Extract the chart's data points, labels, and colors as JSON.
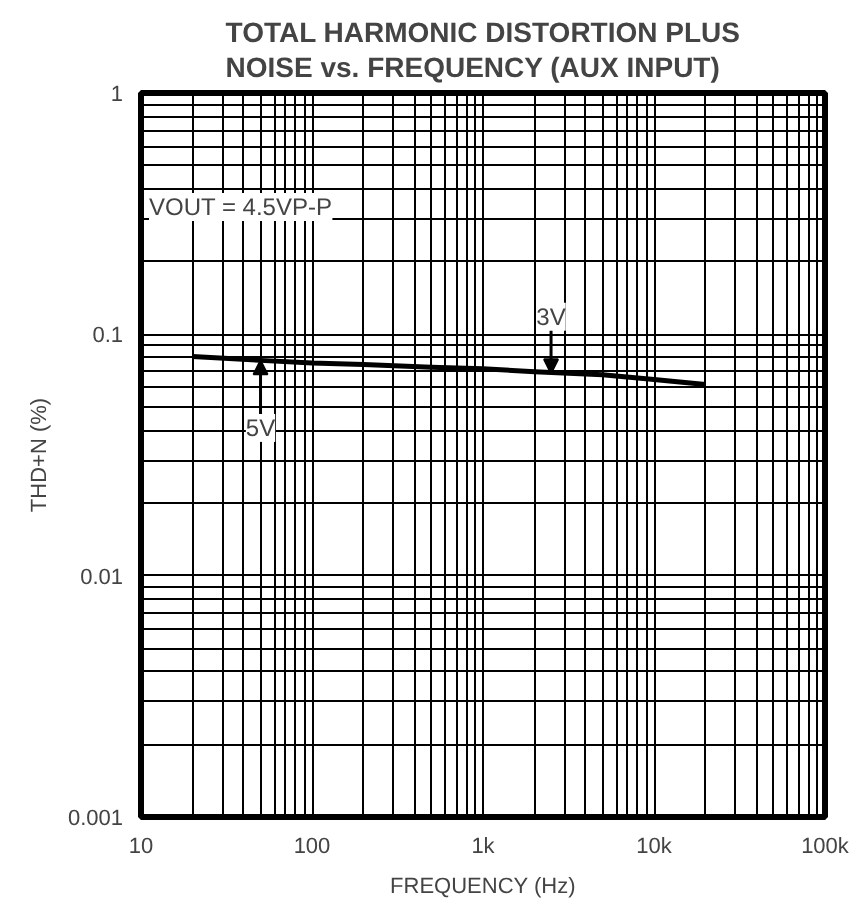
{
  "chart_data": {
    "type": "line",
    "title": "TOTAL HARMONIC DISTORTION PLUS\nNOISE vs. FREQUENCY (AUX INPUT)",
    "xlabel": "FREQUENCY (Hz)",
    "ylabel": "THD+N (%)",
    "x": [
      20,
      50,
      100,
      200,
      500,
      1000,
      2000,
      5000,
      10000,
      20000
    ],
    "series": [
      {
        "color": "#000000",
        "values": [
          0.081,
          0.078,
          0.076,
          0.075,
          0.073,
          0.072,
          0.07,
          0.068,
          0.065,
          0.062
        ]
      }
    ],
    "annotations": [
      "VOUT = 4.5VP-P",
      {
        "text": "3V",
        "x": 2500,
        "y": 0.069
      },
      {
        "text": "5V",
        "x": 50,
        "y": 0.078
      }
    ],
    "log": "xy",
    "xlim": [
      10,
      100000
    ],
    "ylim": [
      0.001,
      1
    ],
    "xticks": [
      10,
      100,
      {
        "value": 1000,
        "label": "1k"
      },
      {
        "value": 10000,
        "label": "10k"
      },
      {
        "value": 100000,
        "label": "100k"
      }
    ],
    "yticks": [
      0.001,
      0.01,
      0.1,
      1
    ],
    "grid": true,
    "line_style": "solid"
  }
}
